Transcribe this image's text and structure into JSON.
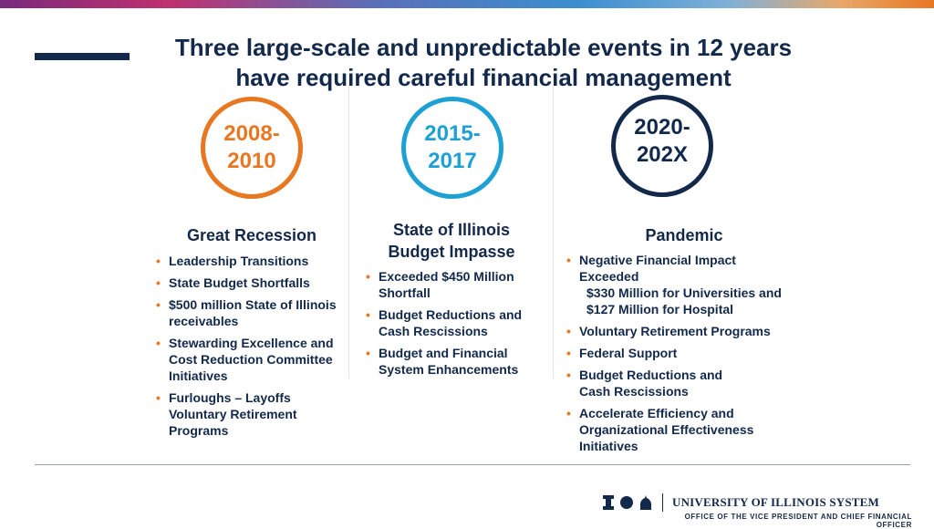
{
  "title": {
    "line1": "Three large-scale and unpredictable events in 12 years",
    "line2": "have required careful financial management"
  },
  "periods": [
    {
      "line1": "2008-",
      "line2": "2010",
      "color": "#e87722"
    },
    {
      "line1": "2015-",
      "line2": "2017",
      "color": "#1da0d4"
    },
    {
      "line1": "2020-",
      "line2": "202X",
      "color": "#13294b"
    }
  ],
  "columns": [
    {
      "heading": "Great Recession",
      "bullets": [
        {
          "text": "Leadership Transitions"
        },
        {
          "text": "State Budget Shortfalls"
        },
        {
          "line1": "$500 million State of Illinois",
          "line2": "receivables"
        },
        {
          "line1": "Stewarding Excellence and",
          "line2": "Cost Reduction Committee",
          "line3": "Initiatives"
        },
        {
          "line1": "Furloughs – Layoffs",
          "line2": "Voluntary Retirement",
          "line3": "Programs"
        }
      ]
    },
    {
      "heading_line1": "State of Illinois",
      "heading_line2": "Budget Impasse",
      "bullets": [
        {
          "line1": "Exceeded $450 Million",
          "line2": "Shortfall"
        },
        {
          "line1": "Budget Reductions and",
          "line2": "Cash Rescissions"
        },
        {
          "line1": "Budget and Financial",
          "line2": "System Enhancements"
        }
      ]
    },
    {
      "heading": "Pandemic",
      "bullets": [
        {
          "line1": "Negative Financial Impact",
          "line2": "Exceeded",
          "sub1": "$330 Million for Universities and",
          "sub2": "$127 Million for Hospital"
        },
        {
          "text": "Voluntary Retirement Programs"
        },
        {
          "text": "Federal Support"
        },
        {
          "line1": "Budget Reductions and",
          "line2": "Cash Rescissions"
        },
        {
          "line1": "Accelerate Efficiency and",
          "line2": "Organizational Effectiveness",
          "line3": "Initiatives"
        }
      ]
    }
  ],
  "footer": {
    "system_name": "UNIVERSITY OF ILLINOIS SYSTEM",
    "office": "OFFICE OF THE VICE PRESIDENT AND CHIEF FINANCIAL OFFICER",
    "brand_color": "#13294b"
  }
}
